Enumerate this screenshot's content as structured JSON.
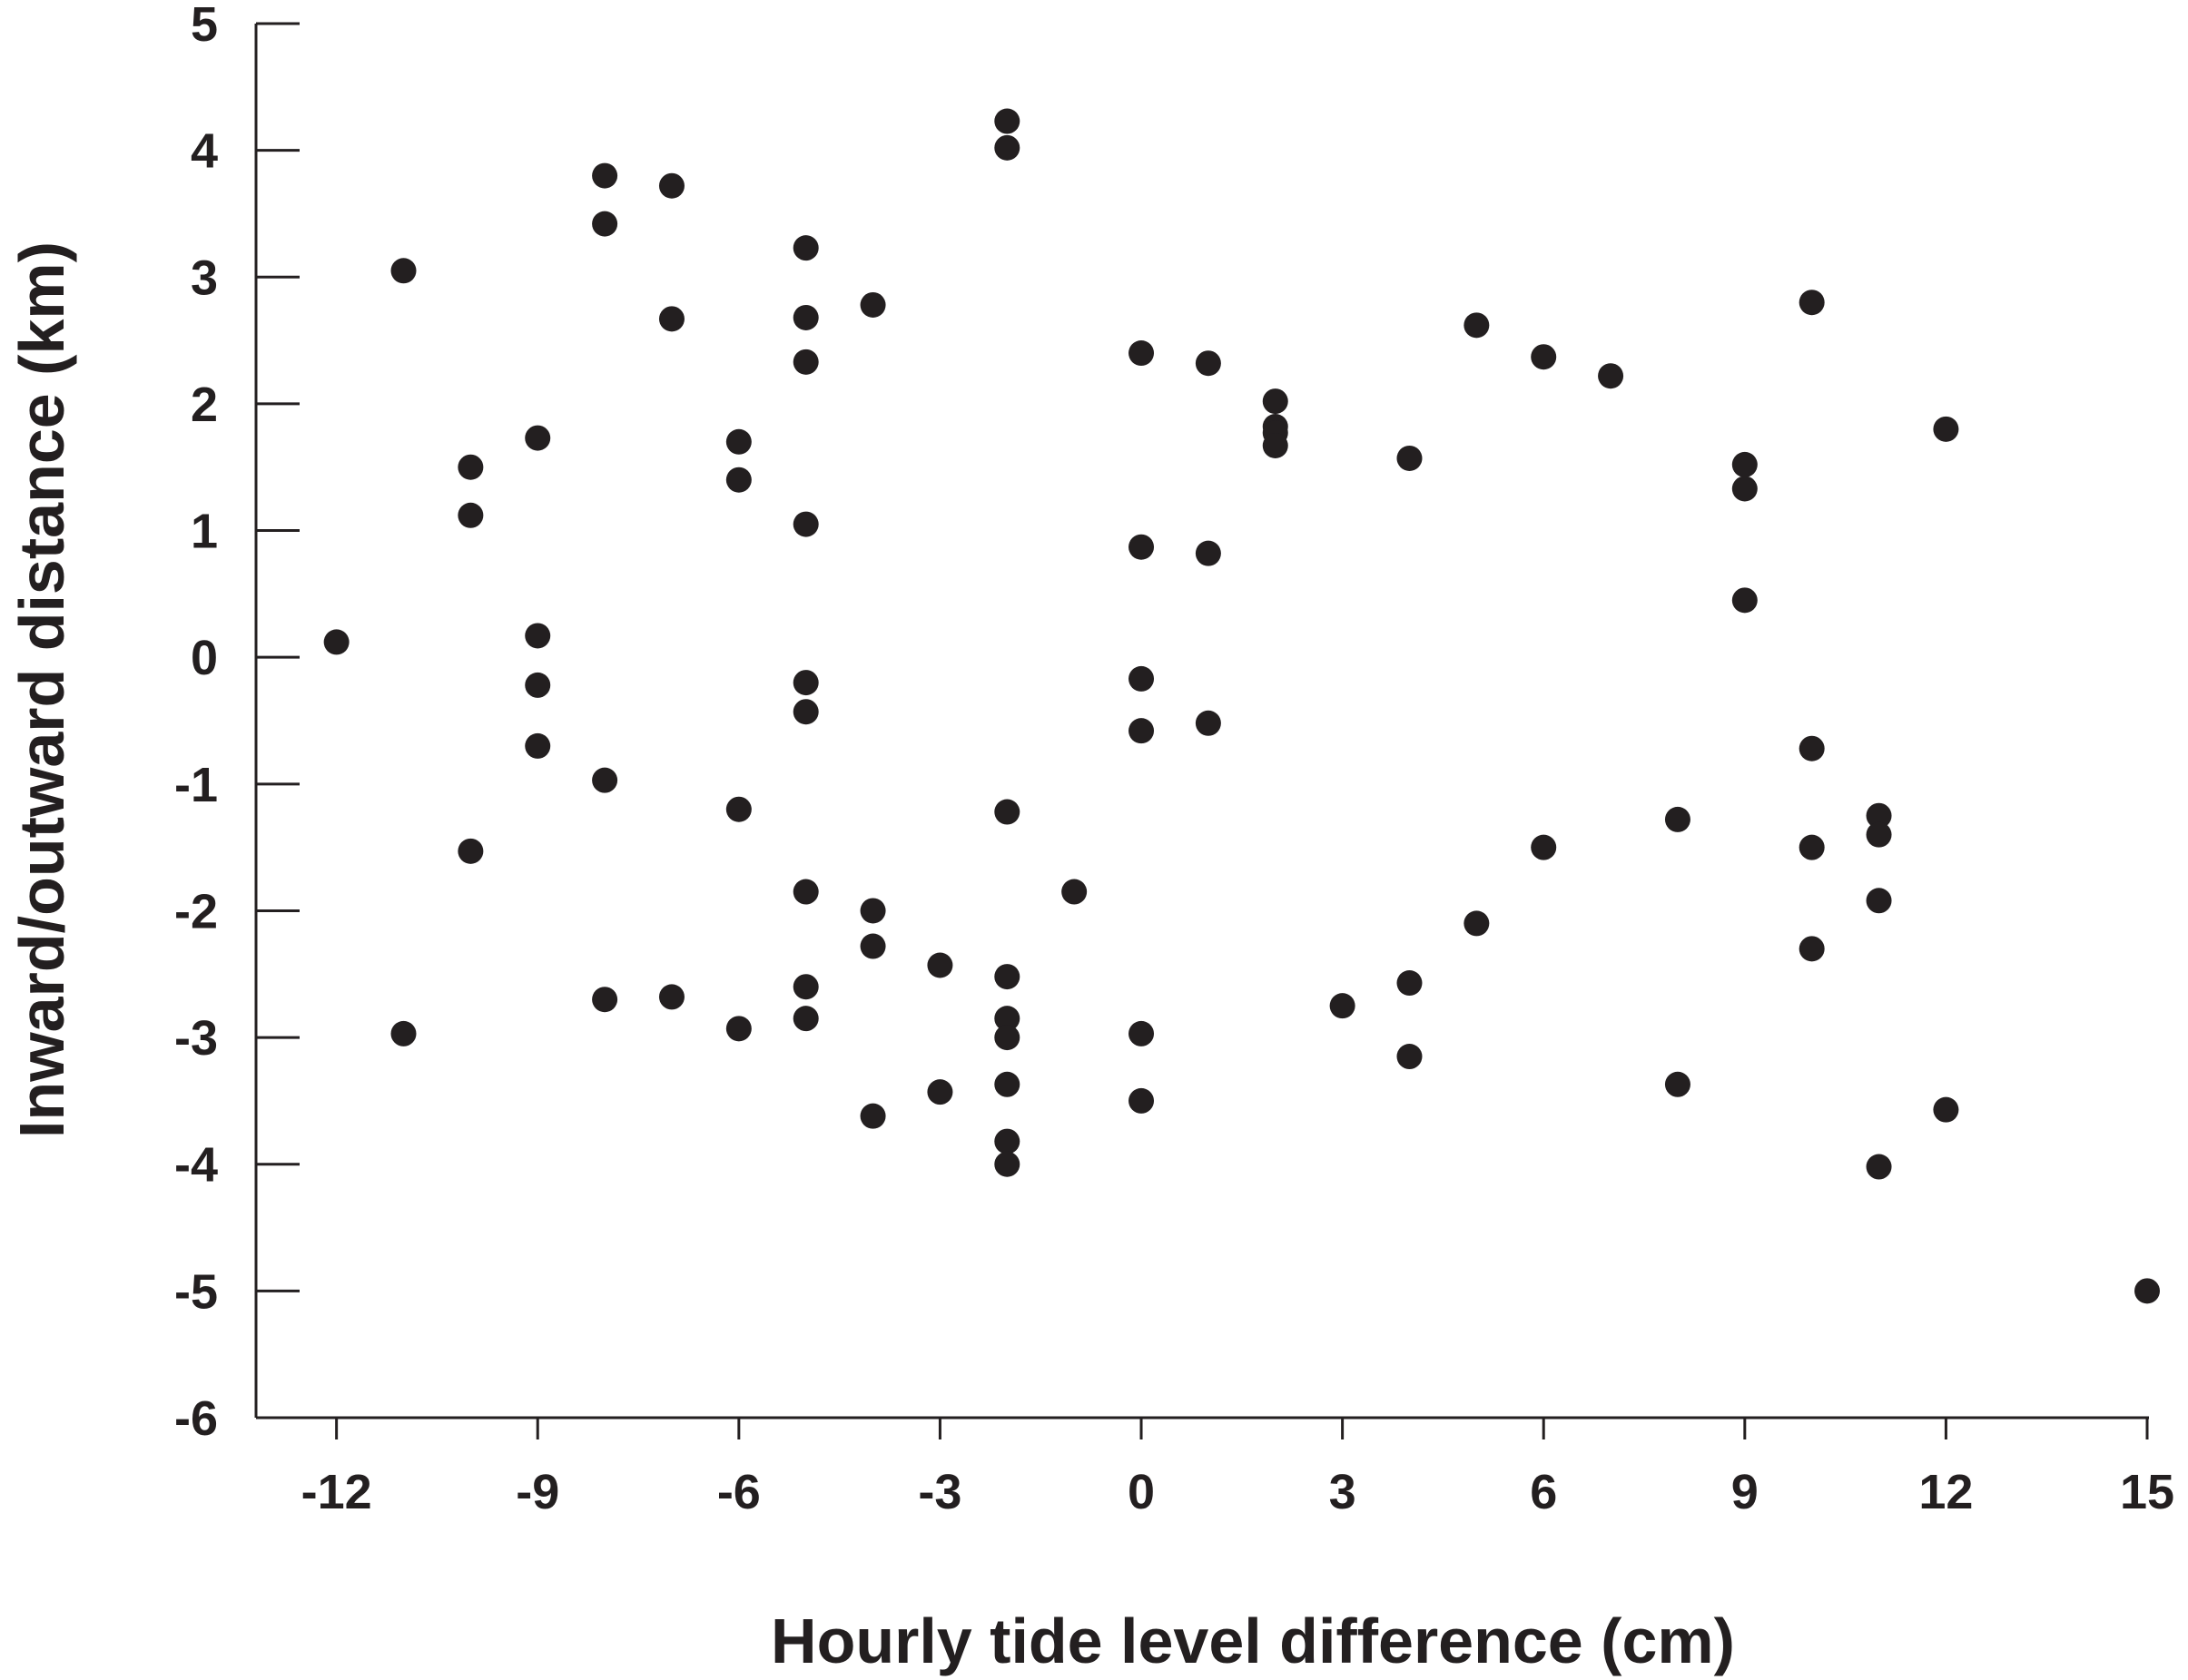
{
  "chart_data": {
    "type": "scatter",
    "xlabel": "Hourly tide level difference (cm)",
    "ylabel": "Inward/outward distance (km)",
    "xlim": [
      -13.2,
      15
    ],
    "ylim": [
      -6,
      5
    ],
    "x_ticks": [
      -12,
      -9,
      -6,
      -3,
      0,
      3,
      6,
      9,
      12,
      15
    ],
    "y_ticks": [
      -6,
      -5,
      -4,
      -3,
      -2,
      -1,
      0,
      1,
      2,
      3,
      4,
      5
    ],
    "grid": false,
    "legend": "none",
    "marker_color": "#231f20",
    "series": [
      {
        "points": [
          [
            -12,
            0.12
          ],
          [
            -11,
            3.05
          ],
          [
            -11,
            -2.97
          ],
          [
            -10,
            1.5
          ],
          [
            -10,
            1.12
          ],
          [
            -10,
            -1.53
          ],
          [
            -9,
            1.73
          ],
          [
            -9,
            0.17
          ],
          [
            -9,
            -0.22
          ],
          [
            -9,
            -0.7
          ],
          [
            -8,
            3.8
          ],
          [
            -8,
            3.42
          ],
          [
            -8,
            -0.97
          ],
          [
            -8,
            -2.7
          ],
          [
            -7,
            3.72
          ],
          [
            -7,
            2.67
          ],
          [
            -7,
            -2.68
          ],
          [
            -6,
            1.7
          ],
          [
            -6,
            1.4
          ],
          [
            -6,
            -1.2
          ],
          [
            -6,
            -2.93
          ],
          [
            -5,
            3.23
          ],
          [
            -5,
            2.68
          ],
          [
            -5,
            2.33
          ],
          [
            -5,
            1.05
          ],
          [
            -5,
            -0.2
          ],
          [
            -5,
            -0.43
          ],
          [
            -5,
            -1.85
          ],
          [
            -5,
            -2.6
          ],
          [
            -5,
            -2.85
          ],
          [
            -4,
            2.78
          ],
          [
            -4,
            -2.0
          ],
          [
            -4,
            -2.28
          ],
          [
            -4,
            -3.62
          ],
          [
            -3,
            -2.43
          ],
          [
            -3,
            -3.43
          ],
          [
            -2,
            4.23
          ],
          [
            -2,
            4.02
          ],
          [
            -2,
            -1.22
          ],
          [
            -2,
            -2.52
          ],
          [
            -2,
            -2.85
          ],
          [
            -2,
            -3.0
          ],
          [
            -2,
            -3.37
          ],
          [
            -2,
            -3.82
          ],
          [
            -2,
            -4.0
          ],
          [
            -1,
            -1.85
          ],
          [
            0,
            2.4
          ],
          [
            0,
            0.87
          ],
          [
            0,
            -0.17
          ],
          [
            0,
            -0.58
          ],
          [
            0,
            -2.97
          ],
          [
            0,
            -3.5
          ],
          [
            1,
            2.32
          ],
          [
            1,
            0.82
          ],
          [
            1,
            -0.52
          ],
          [
            2,
            2.02
          ],
          [
            2,
            1.82
          ],
          [
            2,
            1.77
          ],
          [
            2,
            1.67
          ],
          [
            3,
            -2.75
          ],
          [
            4,
            1.57
          ],
          [
            4,
            -2.57
          ],
          [
            4,
            -3.15
          ],
          [
            5,
            2.62
          ],
          [
            5,
            -2.1
          ],
          [
            6,
            2.37
          ],
          [
            6,
            -1.5
          ],
          [
            7,
            2.22
          ],
          [
            8,
            -1.28
          ],
          [
            8,
            -3.37
          ],
          [
            9,
            1.52
          ],
          [
            9,
            1.33
          ],
          [
            9,
            0.45
          ],
          [
            10,
            2.8
          ],
          [
            10,
            -0.72
          ],
          [
            10,
            -1.5
          ],
          [
            10,
            -2.3
          ],
          [
            11,
            -1.25
          ],
          [
            11,
            -1.4
          ],
          [
            11,
            -1.92
          ],
          [
            11,
            -4.02
          ],
          [
            12,
            1.8
          ],
          [
            12,
            -3.57
          ],
          [
            15,
            -5.0
          ]
        ]
      }
    ]
  }
}
